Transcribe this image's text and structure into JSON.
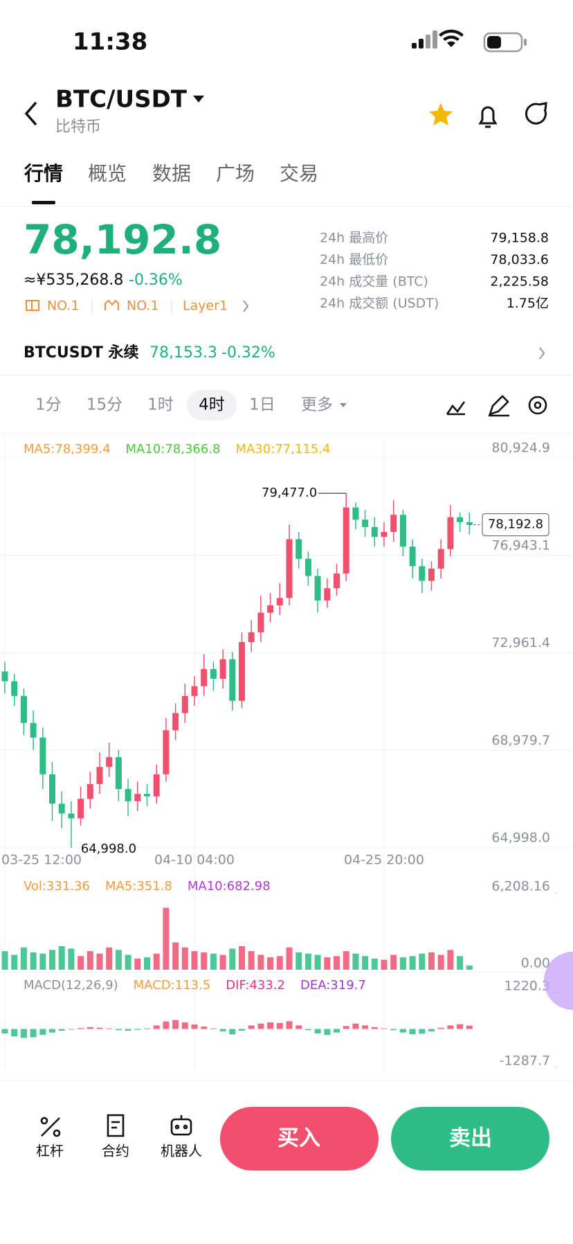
{
  "status": {
    "time": "11:38"
  },
  "header": {
    "pair": "BTC/USDT",
    "name": "比特币"
  },
  "tabs": [
    "行情",
    "概览",
    "数据",
    "广场",
    "交易"
  ],
  "price": {
    "last": "78,192.8",
    "cny": "≈¥535,268.8",
    "change": "-0.36%",
    "tags": [
      "NO.1",
      "NO.1",
      "Layer1"
    ]
  },
  "stats": [
    {
      "label": "24h 最高价",
      "value": "79,158.8"
    },
    {
      "label": "24h 最低价",
      "value": "78,033.6"
    },
    {
      "label": "24h 成交量 (BTC)",
      "value": "2,225.58"
    },
    {
      "label": "24h 成交额 (USDT)",
      "value": "1.75亿"
    }
  ],
  "perp": {
    "name": "BTCUSDT 永续",
    "price": "78,153.3",
    "change": "-0.32%"
  },
  "intervals": [
    "1分",
    "15分",
    "1时",
    "4时",
    "1日",
    "更多"
  ],
  "chart_data": [
    {
      "type": "candlestick",
      "legend": [
        "MA5:78,399.4",
        "MA10:78,366.8",
        "MA30:77,115.4"
      ],
      "legend_colors": [
        "#f39c3c",
        "#4cc93a",
        "#f0b90b"
      ],
      "categories": [
        "03-25 12:00",
        null,
        null,
        null,
        null,
        null,
        null,
        null,
        null,
        null,
        null,
        null,
        null,
        null,
        null,
        null,
        null,
        null,
        null,
        null,
        "04-10 04:00",
        null,
        null,
        null,
        null,
        null,
        null,
        null,
        null,
        null,
        null,
        null,
        null,
        null,
        null,
        null,
        null,
        null,
        null,
        null,
        "04-25 20:00",
        null,
        null,
        null,
        null,
        null,
        null,
        null,
        null,
        null
      ],
      "open": [
        72200,
        71800,
        71200,
        70100,
        69500,
        68000,
        66800,
        66400,
        66200,
        67000,
        67600,
        68300,
        68700,
        67400,
        66900,
        67200,
        67100,
        68000,
        69800,
        70500,
        71200,
        71600,
        72300,
        71900,
        72700,
        71000,
        73400,
        73800,
        74600,
        74900,
        75200,
        77600,
        76800,
        76100,
        75100,
        75600,
        76200,
        78900,
        78400,
        78100,
        77700,
        77900,
        78600,
        77300,
        76500,
        75900,
        76400,
        77200,
        78500,
        78300
      ],
      "high": [
        72600,
        72100,
        71500,
        70600,
        69900,
        68500,
        67300,
        66900,
        67500,
        68100,
        68900,
        69300,
        69000,
        67800,
        67700,
        67600,
        68400,
        70300,
        70900,
        71700,
        72000,
        72900,
        72600,
        73100,
        73000,
        73800,
        74300,
        75300,
        75400,
        75800,
        78200,
        77900,
        77100,
        76400,
        76000,
        76600,
        79477.0,
        79100,
        78800,
        78500,
        78300,
        79200,
        78800,
        77600,
        76800,
        76700,
        77600,
        79000,
        78700,
        78700
      ],
      "low": [
        71300,
        70800,
        69600,
        69000,
        67400,
        66100,
        65800,
        64998.0,
        65900,
        66600,
        67200,
        67900,
        66900,
        66300,
        66500,
        66700,
        66800,
        67700,
        69400,
        70100,
        70800,
        71200,
        71400,
        71500,
        70600,
        70700,
        73000,
        73400,
        74200,
        74500,
        74900,
        76400,
        75700,
        74600,
        74800,
        75300,
        75900,
        78000,
        77700,
        77300,
        77300,
        77500,
        76900,
        76000,
        75400,
        75500,
        76000,
        76900,
        77900,
        77800
      ],
      "close": [
        71800,
        71200,
        70100,
        69500,
        68000,
        66800,
        66400,
        66200,
        67000,
        67600,
        68300,
        68700,
        67400,
        66900,
        67200,
        67100,
        68000,
        69800,
        70500,
        71200,
        71600,
        72300,
        71900,
        72700,
        71000,
        73400,
        73800,
        74600,
        74900,
        75200,
        77600,
        76800,
        76100,
        75100,
        75600,
        76200,
        78900,
        78400,
        78100,
        77700,
        77900,
        78600,
        77300,
        76500,
        75900,
        76400,
        77200,
        78500,
        78300,
        78192.8
      ],
      "up_color": "#f0506e",
      "down_color": "#2dbd85",
      "high_label": "79,477.0",
      "low_label": "64,998.0",
      "last": {
        "value": 78192.8,
        "label": "78,192.8"
      },
      "ylim": [
        64998.0,
        80924.9
      ],
      "yticks": [
        {
          "value": 80924.9,
          "label": "80,924.9"
        },
        {
          "value": 76943.1,
          "label": "76,943.1"
        },
        {
          "value": 72961.4,
          "label": "72,961.4"
        },
        {
          "value": 68979.7,
          "label": "68,979.7"
        },
        {
          "value": 64998.0,
          "label": "64,998.0"
        }
      ],
      "grid": true
    },
    {
      "type": "bar",
      "legend": [
        "Vol:331.36",
        "MA5:351.8",
        "MA10:682.98"
      ],
      "legend_colors": [
        "#f39c3c",
        "#f39c3c",
        "#b03ad8"
      ],
      "values": [
        1500,
        1200,
        1800,
        1400,
        1300,
        1600,
        1900,
        1700,
        1100,
        1500,
        1300,
        1800,
        1600,
        1200,
        900,
        1000,
        1300,
        5000,
        2200,
        1800,
        1500,
        1400,
        1300,
        1200,
        1700,
        1900,
        1500,
        1200,
        1000,
        1100,
        1800,
        1400,
        1300,
        1200,
        1000,
        1100,
        1500,
        1300,
        1100,
        900,
        800,
        1200,
        1000,
        1100,
        1300,
        1400,
        1200,
        1600,
        1100,
        331.36
      ],
      "ylim": [
        0,
        6208.16
      ],
      "yticks": [
        {
          "value": 6208.16,
          "label": "6,208.16"
        },
        {
          "value": 0,
          "label": "0.00"
        }
      ]
    },
    {
      "type": "bar",
      "legend": [
        "MACD(12,26,9)",
        "MACD:113.5",
        "DIF:433.2",
        "DEA:319.7"
      ],
      "legend_colors": [
        "#8a8f99",
        "#f39c3c",
        "#e8308a",
        "#a436d8"
      ],
      "values": [
        -150,
        -250,
        -300,
        -280,
        -200,
        -120,
        -60,
        -20,
        30,
        60,
        40,
        20,
        -40,
        -60,
        -30,
        20,
        120,
        250,
        300,
        220,
        150,
        80,
        20,
        -80,
        -180,
        -60,
        120,
        180,
        220,
        200,
        260,
        120,
        -40,
        -150,
        -200,
        -120,
        100,
        180,
        120,
        60,
        20,
        -40,
        -120,
        -180,
        -160,
        -80,
        40,
        120,
        160,
        113.5
      ],
      "up_color": "#f0506e",
      "down_color": "#2dbd85",
      "ylim": [
        -1287.7,
        1220.3
      ],
      "yticks": [
        1220.3,
        -1287.7
      ]
    }
  ],
  "actions": {
    "tools": [
      "杠杆",
      "合约",
      "机器人"
    ],
    "buy": "买入",
    "sell": "卖出"
  }
}
